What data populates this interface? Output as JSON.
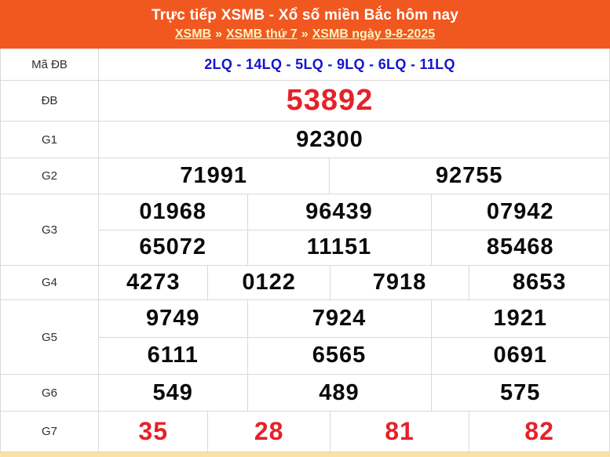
{
  "header": {
    "title": "Trực tiếp XSMB - Xổ số miền Bắc hôm nay",
    "separator": "»",
    "breadcrumb": [
      {
        "label": "XSMB"
      },
      {
        "label": "XSMB thứ 7"
      },
      {
        "label": "XSMB ngày 9-8-2025"
      }
    ]
  },
  "table": {
    "rows": [
      {
        "id": "madb",
        "label": "Mã ĐB",
        "cells": [
          [
            "2LQ - 14LQ - 5LQ - 9LQ - 6LQ - 11LQ"
          ]
        ]
      },
      {
        "id": "db",
        "label": "ĐB",
        "cells": [
          [
            "53892"
          ]
        ]
      },
      {
        "id": "g1",
        "label": "G1",
        "cells": [
          [
            "92300"
          ]
        ]
      },
      {
        "id": "g2",
        "label": "G2",
        "cells": [
          [
            "71991",
            "92755"
          ]
        ]
      },
      {
        "id": "g3",
        "label": "G3",
        "cells": [
          [
            "01968",
            "96439",
            "07942"
          ],
          [
            "65072",
            "11151",
            "85468"
          ]
        ]
      },
      {
        "id": "g4",
        "label": "G4",
        "cells": [
          [
            "4273",
            "0122",
            "7918",
            "8653"
          ]
        ]
      },
      {
        "id": "g5",
        "label": "G5",
        "cells": [
          [
            "9749",
            "7924",
            "1921"
          ],
          [
            "6111",
            "6565",
            "0691"
          ]
        ]
      },
      {
        "id": "g6",
        "label": "G6",
        "cells": [
          [
            "549",
            "489",
            "575"
          ]
        ]
      },
      {
        "id": "g7",
        "label": "G7",
        "cells": [
          [
            "35",
            "28",
            "81",
            "82"
          ]
        ]
      }
    ]
  },
  "colors": {
    "header_bg": "#F0581F",
    "breadcrumb_link": "#FFF2C0",
    "code_blue": "#1414CE",
    "prize_red": "#E62129",
    "number_black": "#0A0A0A",
    "label_gray": "#2E2E2E",
    "table_border": "#D9D9D9",
    "bottom_strip": "#FAE2A3"
  }
}
